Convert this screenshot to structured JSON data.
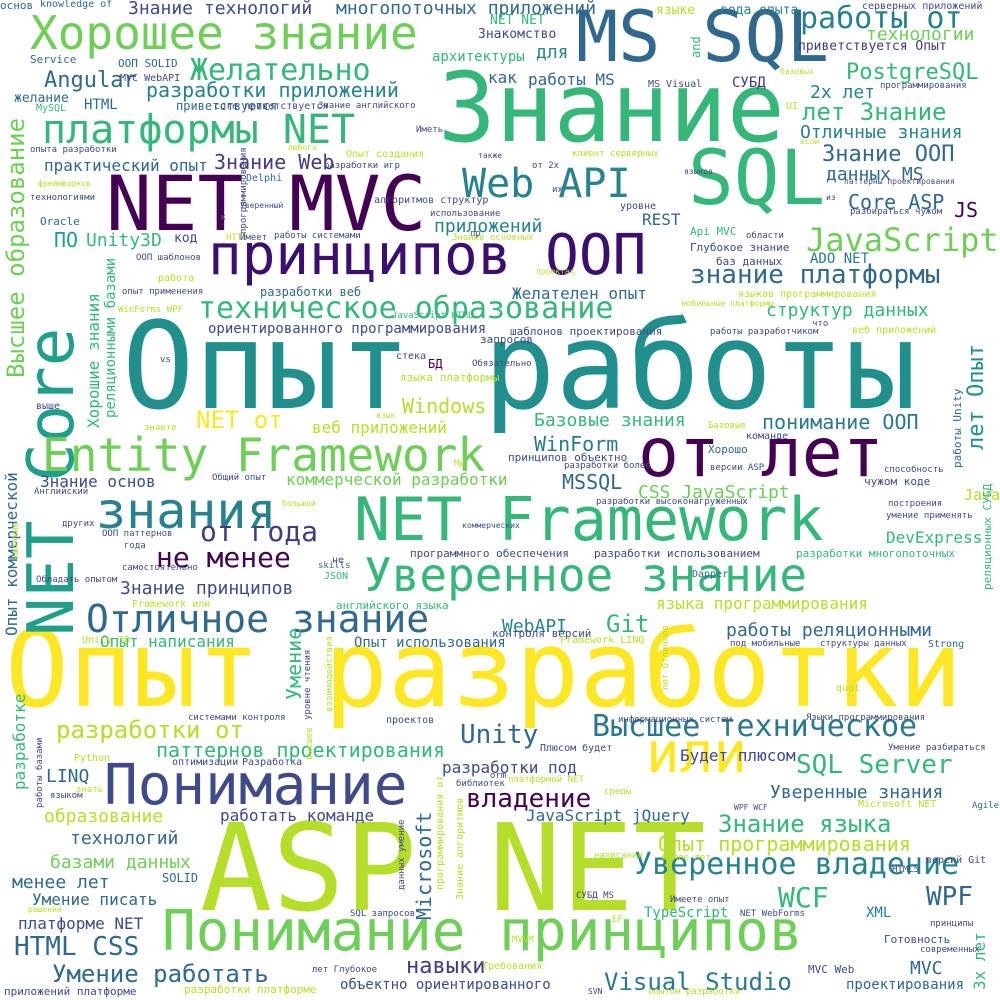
{
  "words": [
    {
      "text": "Опыт разработки",
      "color": "#fde725"
    },
    {
      "text": "Опыт работы",
      "color": "#21908d"
    },
    {
      "text": "ASP NET",
      "color": "#b5de2b"
    },
    {
      "text": "Знание",
      "color": "#35b779"
    },
    {
      "text": "NET MVC",
      "color": "#440154"
    },
    {
      "text": "MS SQL",
      "color": "#31688e"
    },
    {
      "text": "SQL",
      "color": "#35b779"
    },
    {
      "text": "NET Core",
      "color": "#1f9e89"
    },
    {
      "text": "принципов ООП",
      "color": "#3b0f70"
    },
    {
      "text": "от лет",
      "color": "#440154"
    },
    {
      "text": "NET Framework",
      "color": "#35b779"
    },
    {
      "text": "Понимание",
      "color": "#3e4a89"
    },
    {
      "text": "Понимание принципов",
      "color": "#6ece58"
    },
    {
      "text": "Хорошее знание",
      "color": "#6ece58"
    },
    {
      "text": "Entity Framework",
      "color": "#6ece58"
    },
    {
      "text": "знания",
      "color": "#26828e"
    },
    {
      "text": "Уверенное знание",
      "color": "#35b779"
    },
    {
      "text": "Отличное знание",
      "color": "#31688e"
    },
    {
      "text": "или",
      "color": "#fde725"
    },
    {
      "text": "платформы NET",
      "color": "#35b779"
    },
    {
      "text": "Web API",
      "color": "#26828e"
    },
    {
      "text": "Высшее техническое",
      "color": "#2a788e"
    },
    {
      "text": "Уверенное владение",
      "color": "#26828e"
    },
    {
      "text": "техническое образование",
      "color": "#35b779"
    },
    {
      "text": "JavaScript",
      "color": "#6ece58"
    },
    {
      "text": "Высшее образование",
      "color": "#6ece58"
    },
    {
      "text": "работы от",
      "color": "#26828e"
    },
    {
      "text": "Желательно",
      "color": "#35b779"
    },
    {
      "text": "знание платформы",
      "color": "#31688e"
    },
    {
      "text": "Знание технологий",
      "color": "#3e4a89"
    },
    {
      "text": "многопоточных приложений",
      "color": "#31688e"
    },
    {
      "text": "разработки приложений",
      "color": "#26828e"
    },
    {
      "text": "Angular",
      "color": "#31688e"
    },
    {
      "text": "Знание Web",
      "color": "#443983"
    },
    {
      "text": "практический опыт",
      "color": "#31688e"
    },
    {
      "text": "Unity3D",
      "color": "#35b779"
    },
    {
      "text": "ПО",
      "color": "#1f9e89"
    },
    {
      "text": "технологии",
      "color": "#6ece58"
    },
    {
      "text": "PostgreSQL",
      "color": "#35b779"
    },
    {
      "text": "лет Знание",
      "color": "#35b779"
    },
    {
      "text": "2х лет",
      "color": "#26828e"
    },
    {
      "text": "Отличные знания",
      "color": "#26828e"
    },
    {
      "text": "Знание ООП",
      "color": "#31688e"
    },
    {
      "text": "данных MS",
      "color": "#31688e"
    },
    {
      "text": "Core ASP",
      "color": "#31688e"
    },
    {
      "text": "JS",
      "color": "#440154"
    },
    {
      "text": "приложений",
      "color": "#26828e"
    },
    {
      "text": "REST",
      "color": "#31688e"
    },
    {
      "text": "работы MS",
      "color": "#31688e"
    },
    {
      "text": "для",
      "color": "#26828e"
    },
    {
      "text": "как",
      "color": "#31688e"
    },
    {
      "text": "СУБД",
      "color": "#443983"
    },
    {
      "text": "архитектуры",
      "color": "#35b779"
    },
    {
      "text": "Знакомство",
      "color": "#3e4a89"
    },
    {
      "text": "NET NET",
      "color": "#35b779"
    },
    {
      "text": "языке",
      "color": "#b5de2b"
    },
    {
      "text": "года опыта",
      "color": "#26828e"
    },
    {
      "text": "приветствуется Опыт",
      "color": "#443983"
    },
    {
      "text": "серверных приложений",
      "color": "#3e4a89"
    },
    {
      "text": "Желателен опыт",
      "color": "#31688e"
    },
    {
      "text": "структур данных",
      "color": "#35b779"
    },
    {
      "text": "ADO NET",
      "color": "#2a788e"
    },
    {
      "text": "ориентированного программирования",
      "color": "#3e4a89"
    },
    {
      "text": "разработки веб",
      "color": "#31688e"
    },
    {
      "text": "понимание ООП",
      "color": "#2a788e"
    },
    {
      "text": "лет Опыт",
      "color": "#21908d"
    },
    {
      "text": "NET от",
      "color": "#fde725"
    },
    {
      "text": "веб приложений",
      "color": "#b5de2b"
    },
    {
      "text": "Windows",
      "color": "#b5de2b"
    },
    {
      "text": "Базовые знания",
      "color": "#35b779"
    },
    {
      "text": "WinForm",
      "color": "#2a788e"
    },
    {
      "text": "коммерческой разработки",
      "color": "#6ece58"
    },
    {
      "text": "Знание основ",
      "color": "#3e4a89"
    },
    {
      "text": "MSSQL",
      "color": "#31688e"
    },
    {
      "text": "CSS JavaScript",
      "color": "#6ece58"
    },
    {
      "text": "от года",
      "color": "#443983"
    },
    {
      "text": "не менее",
      "color": "#440154"
    },
    {
      "text": "Java",
      "color": "#b5de2b"
    },
    {
      "text": "DevExpress",
      "color": "#35b779"
    },
    {
      "text": "Знание принципов",
      "color": "#3e4a89"
    },
    {
      "text": "языка программирования",
      "color": "#b5de2b"
    },
    {
      "text": "Git",
      "color": "#35b779"
    },
    {
      "text": "WebAPI",
      "color": "#26828e"
    },
    {
      "text": "работы реляционными",
      "color": "#31688e"
    },
    {
      "text": "Опыт написания",
      "color": "#35b779"
    },
    {
      "text": "Опыт использования",
      "color": "#31688e"
    },
    {
      "text": "разработки от",
      "color": "#b5de2b"
    },
    {
      "text": "Unity",
      "color": "#31688e"
    },
    {
      "text": "паттернов проектирования",
      "color": "#35b779"
    },
    {
      "text": "SQL Server",
      "color": "#35b779"
    },
    {
      "text": "Будет плюсом",
      "color": "#3e4a89"
    },
    {
      "text": "Уверенные знания",
      "color": "#31688e"
    },
    {
      "text": "LINQ",
      "color": "#31688e"
    },
    {
      "text": "разработки под",
      "color": "#3e4a89"
    },
    {
      "text": "владение",
      "color": "#440154"
    },
    {
      "text": "Знание языка",
      "color": "#35b779"
    },
    {
      "text": "Опыт программирования",
      "color": "#b5de2b"
    },
    {
      "text": "образование",
      "color": "#b5de2b"
    },
    {
      "text": "работать команде",
      "color": "#3e4a89"
    },
    {
      "text": "JavaScript jQuery",
      "color": "#31688e"
    },
    {
      "text": "технологий",
      "color": "#31688e"
    },
    {
      "text": "базами данных",
      "color": "#6ece58"
    },
    {
      "text": "менее лет",
      "color": "#31688e"
    },
    {
      "text": "Умение писать",
      "color": "#31688e"
    },
    {
      "text": "WCF",
      "color": "#35b779"
    },
    {
      "text": "WPF",
      "color": "#31688e"
    },
    {
      "text": "XML",
      "color": "#26828e"
    },
    {
      "text": "платформе NET",
      "color": "#3e4a89"
    },
    {
      "text": "HTML CSS",
      "color": "#31688e"
    },
    {
      "text": "Умение работать",
      "color": "#31688e"
    },
    {
      "text": "навыки",
      "color": "#443983"
    },
    {
      "text": "Visual Studio",
      "color": "#2a788e"
    },
    {
      "text": "MVC",
      "color": "#31688e"
    },
    {
      "text": "объектно ориентированного",
      "color": "#3e4a89"
    },
    {
      "text": "Microsoft",
      "color": "#31688e"
    },
    {
      "text": "TypeScript",
      "color": "#35b779"
    },
    {
      "text": "SOLID",
      "color": "#31688e"
    },
    {
      "text": "MVC Web",
      "color": "#3e4a89"
    },
    {
      "text": "Готовность",
      "color": "#3e4a89"
    },
    {
      "text": "проектирования",
      "color": "#31688e"
    },
    {
      "text": "приложений платформе",
      "color": "#3e4a89"
    },
    {
      "text": "разработки платформе",
      "color": "#b5de2b"
    },
    {
      "text": "Опыт коммерческой",
      "color": "#31688e"
    },
    {
      "text": "Хорошие знания",
      "color": "#35b779"
    },
    {
      "text": "реляционными базами",
      "color": "#35b779"
    },
    {
      "text": "Умение",
      "color": "#35b779"
    },
    {
      "text": "разработке",
      "color": "#35b779"
    },
    {
      "text": "3х лет",
      "color": "#35b779"
    },
    {
      "text": "работы Unity",
      "color": "#31688e"
    },
    {
      "text": "реляционных СУБД",
      "color": "#35b779"
    },
    {
      "text": "код",
      "color": "#3e4a89"
    },
    {
      "text": "приветствуется",
      "color": "#31688e"
    },
    {
      "text": "HTML",
      "color": "#31688e"
    },
    {
      "text": "желание",
      "color": "#31688e"
    },
    {
      "text": "Service",
      "color": "#31688e"
    },
    {
      "text": "knowledge of",
      "color": "#31688e"
    },
    {
      "text": "основ",
      "color": "#31688e"
    },
    {
      "text": "ООП SOLID",
      "color": "#31688e"
    },
    {
      "text": "MVC WebAPI",
      "color": "#3e4a89"
    },
    {
      "text": "core приветствуется",
      "color": "#3e4a89"
    },
    {
      "text": "Знание английского",
      "color": "#3e4a89"
    },
    {
      "text": "MS Visual",
      "color": "#3e4a89"
    },
    {
      "text": "and",
      "color": "#35b779"
    },
    {
      "text": "MySQL",
      "color": "#35b779"
    },
    {
      "text": "Oracle",
      "color": "#31688e"
    },
    {
      "text": "Delphi",
      "color": "#31688e"
    },
    {
      "text": "Dapper",
      "color": "#31688e"
    },
    {
      "text": "Python",
      "color": "#b5de2b"
    },
    {
      "text": "JSON",
      "color": "#35b779"
    },
    {
      "text": "skills",
      "color": "#31688e"
    },
    {
      "text": "Strong",
      "color": "#31688e"
    },
    {
      "text": "quot",
      "color": "#b5de2b"
    },
    {
      "text": "Agile",
      "color": "#31688e"
    },
    {
      "text": "HTTP",
      "color": "#b5de2b"
    },
    {
      "text": "Api MVC",
      "color": "#35b779"
    },
    {
      "text": "Глубокое знание",
      "color": "#3e4a89"
    },
    {
      "text": "баз данных",
      "color": "#3e4a89"
    },
    {
      "text": "контроля версий",
      "color": "#3e4a89"
    },
    {
      "text": "английского языка",
      "color": "#35b779"
    },
    {
      "text": "программного обеспечения",
      "color": "#3e4a89"
    },
    {
      "text": "разработки использованием",
      "color": "#3e4a89"
    },
    {
      "text": "разработки многопоточных",
      "color": "#35b779"
    },
    {
      "text": "шаблонов проектирования",
      "color": "#3e4a89"
    },
    {
      "text": "запросов",
      "color": "#3e4a89"
    },
    {
      "text": "стека",
      "color": "#3e4a89"
    },
    {
      "text": "БД",
      "color": "#440154"
    },
    {
      "text": "языка платформы",
      "color": "#b5de2b"
    },
    {
      "text": "принципов объектно",
      "color": "#3e4a89"
    },
    {
      "text": "команде",
      "color": "#3e4a89"
    },
    {
      "text": "Хорошо",
      "color": "#31688e"
    },
    {
      "text": "чужом коде",
      "color": "#3e4a89"
    },
    {
      "text": "Framework LINQ",
      "color": "#b5de2b"
    },
    {
      "text": "Framework или",
      "color": "#b5de2b"
    },
    {
      "text": "Unity 3D",
      "color": "#b5de2b"
    },
    {
      "text": "структуры данных",
      "color": "#3e4a89"
    },
    {
      "text": "под мобильные",
      "color": "#3e4a89"
    },
    {
      "text": "проектов",
      "color": "#3e4a89"
    },
    {
      "text": "информационных систем",
      "color": "#3e4a89"
    },
    {
      "text": "Языки программирования",
      "color": "#3e4a89"
    },
    {
      "text": "системами контроля",
      "color": "#3e4a89"
    },
    {
      "text": "оптимизации",
      "color": "#3e4a89"
    },
    {
      "text": "Разработка",
      "color": "#3e4a89"
    },
    {
      "text": "Плюсом будет",
      "color": "#3e4a89"
    },
    {
      "text": "Умение разбираться",
      "color": "#3e4a89"
    },
    {
      "text": "Microsoft NET",
      "color": "#b5de2b"
    },
    {
      "text": "WPF WCF",
      "color": "#3e4a89"
    },
    {
      "text": "HTML5",
      "color": "#3e4a89"
    },
    {
      "text": "версий Git",
      "color": "#3e4a89"
    },
    {
      "text": "MVVM",
      "color": "#b5de2b"
    },
    {
      "text": "СУБД MS",
      "color": "#3e4a89"
    },
    {
      "text": "Имеете опыт",
      "color": "#3e4a89"
    },
    {
      "text": "NET WebForms",
      "color": "#3e4a89"
    },
    {
      "text": "SQL запросов",
      "color": "#3e4a89"
    },
    {
      "text": "Требования",
      "color": "#b5de2b"
    },
    {
      "text": "опытом разработки",
      "color": "#b5de2b"
    },
    {
      "text": "лет Глубокое",
      "color": "#3e4a89"
    },
    {
      "text": "Обладать опытом",
      "color": "#3e4a89"
    },
    {
      "text": "самостоятельно",
      "color": "#3e4a89"
    },
    {
      "text": "ООП паттернов",
      "color": "#3e4a89"
    },
    {
      "text": "года",
      "color": "#3e4a89"
    },
    {
      "text": "других",
      "color": "#3e4a89"
    },
    {
      "text": "коммерческих",
      "color": "#3e4a89"
    },
    {
      "text": "Английский",
      "color": "#3e4a89"
    },
    {
      "text": "Общий опыт",
      "color": "#3e4a89"
    },
    {
      "text": "большой",
      "color": "#b5de2b"
    },
    {
      "text": "разработки высоконагруженных",
      "color": "#3e4a89"
    },
    {
      "text": "разработки более",
      "color": "#3e4a89"
    },
    {
      "text": "версии ASP",
      "color": "#3e4a89"
    },
    {
      "text": "способность",
      "color": "#3e4a89"
    },
    {
      "text": "построения",
      "color": "#3e4a89"
    },
    {
      "text": "умение применять",
      "color": "#3e4a89"
    },
    {
      "text": "работы разработчиком",
      "color": "#3e4a89"
    },
    {
      "text": "веб приложений",
      "color": "#b5de2b"
    },
    {
      "text": "мобильные платформы",
      "color": "#b5de2b"
    },
    {
      "text": "языков программирования",
      "color": "#b5de2b"
    },
    {
      "text": "проектах",
      "color": "#b5de2b"
    },
    {
      "text": "Имеет",
      "color": "#3e4a89"
    },
    {
      "text": "работы системами",
      "color": "#3e4a89"
    },
    {
      "text": "Знание основных",
      "color": "#b5de2b"
    },
    {
      "text": "ООП шаблонов",
      "color": "#3e4a89"
    },
    {
      "text": "работа",
      "color": "#b5de2b"
    },
    {
      "text": "опыт применения",
      "color": "#3e4a89"
    },
    {
      "text": "JavaScript HTML",
      "color": "#35b779"
    },
    {
      "text": "WinForms WPF",
      "color": "#b5de2b"
    },
    {
      "text": "алгоритмов структур",
      "color": "#3e4a89"
    },
    {
      "text": "использование",
      "color": "#3e4a89"
    },
    {
      "text": "уровне",
      "color": "#3e4a89"
    },
    {
      "text": "области",
      "color": "#3e4a89"
    },
    {
      "text": "разбираться чужом",
      "color": "#3e4a89"
    },
    {
      "text": "паттерны проектирования",
      "color": "#3e4a89"
    },
    {
      "text": "клиент серверных",
      "color": "#b5de2b"
    },
    {
      "text": "от 2х",
      "color": "#3e4a89"
    },
    {
      "text": "также",
      "color": "#3e4a89"
    },
    {
      "text": "языков",
      "color": "#3e4a89"
    },
    {
      "text": "Уверенный",
      "color": "#3e4a89"
    },
    {
      "text": "Иметь",
      "color": "#3e4a89"
    },
    {
      "text": "любого",
      "color": "#b5de2b"
    },
    {
      "text": "Опыт создания",
      "color": "#b5de2b"
    },
    {
      "text": "разработки игр",
      "color": "#3e4a89"
    },
    {
      "text": "опыта разработки",
      "color": "#3e4a89"
    },
    {
      "text": "фреймворков",
      "color": "#b5de2b"
    },
    {
      "text": "технологиями",
      "color": "#3e4a89"
    },
    {
      "text": "программирования",
      "color": "#3e4a89"
    },
    {
      "text": "базовых",
      "color": "#b5de2b"
    },
    {
      "text": "UI",
      "color": "#b5de2b"
    },
    {
      "text": "если",
      "color": "#b5de2b"
    },
    {
      "text": "из",
      "color": "#3e4a89"
    },
    {
      "text": "знаете",
      "color": "#b5de2b"
    },
    {
      "text": "выше",
      "color": "#3e4a89"
    },
    {
      "text": "язык",
      "color": "#b5de2b"
    },
    {
      "text": "Обязательно",
      "color": "#3e4a89"
    },
    {
      "text": "Мы",
      "color": "#b5de2b"
    },
    {
      "text": "знать",
      "color": "#b5de2b"
    },
    {
      "text": "языком",
      "color": "#3e4a89"
    },
    {
      "text": "библиотек",
      "color": "#3e4a89"
    },
    {
      "text": "платформой NET",
      "color": "#b5de2b"
    },
    {
      "text": "среды",
      "color": "#b5de2b"
    },
    {
      "text": "написания",
      "color": "#b5de2b"
    },
    {
      "text": "более лет",
      "color": "#b5de2b"
    },
    {
      "text": "решений",
      "color": "#b5de2b"
    },
    {
      "text": "EF",
      "color": "#b5de2b"
    },
    {
      "text": "SVN",
      "color": "#3e4a89"
    },
    {
      "text": "что",
      "color": "#3e4a89"
    },
    {
      "text": "современных",
      "color": "#3e4a89"
    },
    {
      "text": "принципы",
      "color": "#3e4a89"
    },
    {
      "text": "наличие",
      "color": "#b5de2b"
    },
    {
      "text": "работы базами",
      "color": "#3e4a89"
    },
    {
      "text": "лет Отличное",
      "color": "#b5de2b"
    },
    {
      "text": "взаимодействия",
      "color": "#b5de2b"
    },
    {
      "text": "уровне чтения",
      "color": "#3e4a89"
    },
    {
      "text": "программирования",
      "color": "#3e4a89"
    },
    {
      "text": "высшее",
      "color": "#b5de2b"
    },
    {
      "text": "данных умение",
      "color": "#3e4a89"
    },
    {
      "text": "программирования от",
      "color": "#b5de2b"
    },
    {
      "text": "Знание алгоритмов",
      "color": "#b5de2b"
    },
    {
      "text": "Базовые",
      "color": "#b5de2b"
    },
    {
      "text": "ж",
      "color": "#3e4a89"
    },
    {
      "text": "vs",
      "color": "#3e4a89"
    },
    {
      "text": "orm",
      "color": "#3e4a89"
    },
    {
      "text": "их",
      "color": "#3e4a89"
    },
    {
      "text": "не",
      "color": "#3e4a89"
    },
    {
      "text": "пр",
      "color": "#3e4a89"
    }
  ]
}
